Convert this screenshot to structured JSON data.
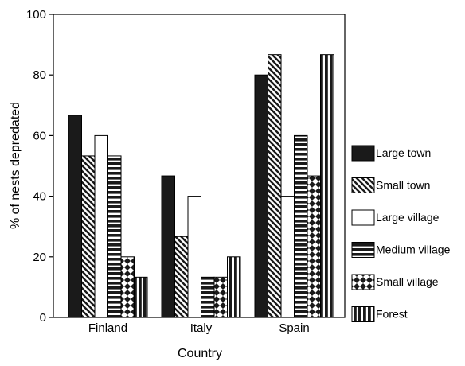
{
  "chart_data": {
    "type": "bar",
    "xlabel": "Country",
    "ylabel": "% of nests depredated",
    "categories": [
      "Finland",
      "Italy",
      "Spain"
    ],
    "ylim": [
      0,
      100
    ],
    "yticks": [
      0,
      20,
      40,
      60,
      80,
      100
    ],
    "grid": false,
    "legend_position": "right",
    "series": [
      {
        "name": "Large town",
        "values": [
          66.7,
          46.7,
          80.0
        ],
        "pattern": "solid"
      },
      {
        "name": "Small town",
        "values": [
          53.3,
          26.7,
          86.7
        ],
        "pattern": "diagonal-hatch"
      },
      {
        "name": "Large village",
        "values": [
          60.0,
          40.0,
          40.0
        ],
        "pattern": "empty"
      },
      {
        "name": "Medium village",
        "values": [
          53.3,
          13.3,
          60.0
        ],
        "pattern": "horizontal-stripes"
      },
      {
        "name": "Small village",
        "values": [
          20.0,
          13.3,
          46.7
        ],
        "pattern": "crosshatch"
      },
      {
        "name": "Forest",
        "values": [
          13.3,
          20.0,
          86.7
        ],
        "pattern": "vertical-stripes"
      }
    ]
  },
  "colors": {
    "bar_fill": "#1a1a1a",
    "pattern_background": "#ffffff",
    "axis": "#000000"
  }
}
